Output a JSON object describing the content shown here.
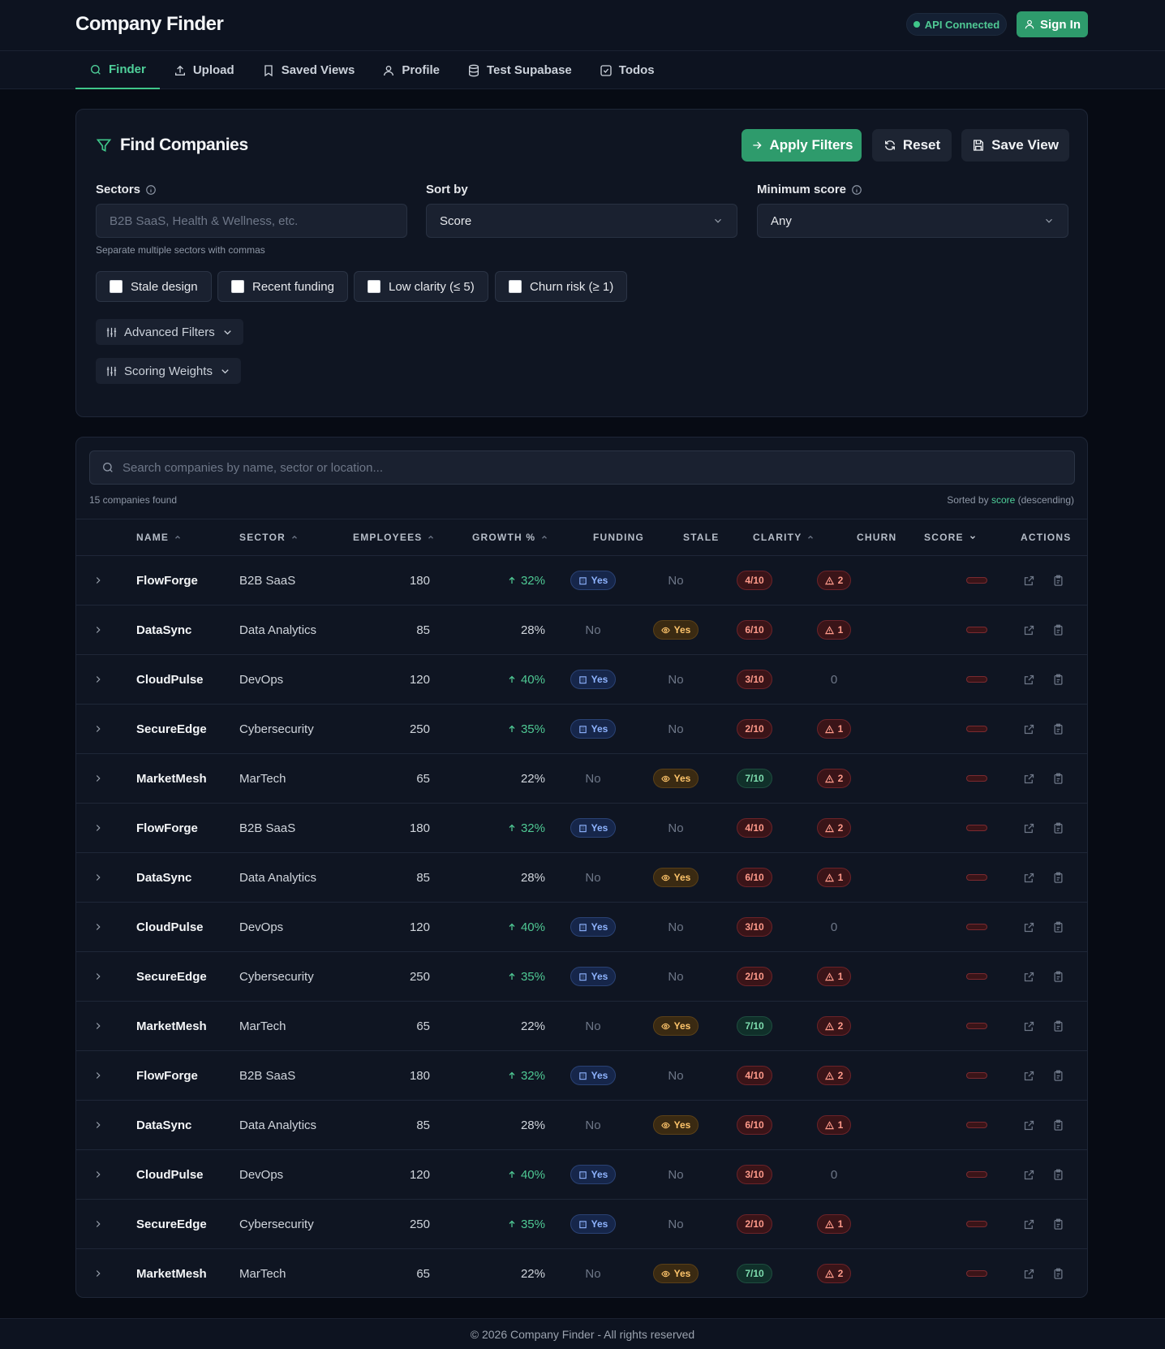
{
  "app": {
    "title": "Company Finder"
  },
  "header": {
    "api_status": "API Connected",
    "signin_label": "Sign In"
  },
  "nav": {
    "tabs": [
      {
        "label": "Finder",
        "icon": "search-icon"
      },
      {
        "label": "Upload",
        "icon": "upload-icon"
      },
      {
        "label": "Saved Views",
        "icon": "bookmark-icon"
      },
      {
        "label": "Profile",
        "icon": "user-icon"
      },
      {
        "label": "Test Supabase",
        "icon": "database-icon"
      },
      {
        "label": "Todos",
        "icon": "checkbox-icon"
      }
    ],
    "active": "Finder"
  },
  "filters": {
    "title": "Find Companies",
    "apply_label": "Apply Filters",
    "reset_label": "Reset",
    "save_label": "Save View",
    "sectors_label": "Sectors",
    "sectors_placeholder": "B2B SaaS, Health & Wellness, etc.",
    "sectors_hint": "Separate multiple sectors with commas",
    "sort_label": "Sort by",
    "sort_value": "Score",
    "min_score_label": "Minimum score",
    "min_score_value": "Any",
    "checkboxes": [
      "Stale design",
      "Recent funding",
      "Low clarity (≤ 5)",
      "Churn risk (≥ 1)"
    ],
    "advanced_label": "Advanced Filters",
    "weights_label": "Scoring Weights"
  },
  "results": {
    "search_placeholder": "Search companies by name, sector or location...",
    "count_text": "15 companies found",
    "sorted_prefix": "Sorted by",
    "sorted_key": "score",
    "sorted_suffix": "(descending)",
    "columns": [
      "NAME",
      "SECTOR",
      "EMPLOYEES",
      "GROWTH %",
      "FUNDING",
      "STALE",
      "CLARITY",
      "CHURN",
      "SCORE",
      "ACTIONS"
    ],
    "rows": [
      {
        "name": "FlowForge",
        "sector": "B2B SaaS",
        "employees": "180",
        "growth": "32%",
        "growth_up": true,
        "funding": "Yes",
        "stale": "No",
        "clarity": "4/10",
        "clarity_level": "red",
        "churn": "2"
      },
      {
        "name": "DataSync",
        "sector": "Data Analytics",
        "employees": "85",
        "growth": "28%",
        "growth_up": false,
        "funding": "No",
        "stale": "Yes",
        "clarity": "6/10",
        "clarity_level": "red",
        "churn": "1"
      },
      {
        "name": "CloudPulse",
        "sector": "DevOps",
        "employees": "120",
        "growth": "40%",
        "growth_up": true,
        "funding": "Yes",
        "stale": "No",
        "clarity": "3/10",
        "clarity_level": "red",
        "churn": "0"
      },
      {
        "name": "SecureEdge",
        "sector": "Cybersecurity",
        "employees": "250",
        "growth": "35%",
        "growth_up": true,
        "funding": "Yes",
        "stale": "No",
        "clarity": "2/10",
        "clarity_level": "red",
        "churn": "1"
      },
      {
        "name": "MarketMesh",
        "sector": "MarTech",
        "employees": "65",
        "growth": "22%",
        "growth_up": false,
        "funding": "No",
        "stale": "Yes",
        "clarity": "7/10",
        "clarity_level": "green",
        "churn": "2"
      },
      {
        "name": "FlowForge",
        "sector": "B2B SaaS",
        "employees": "180",
        "growth": "32%",
        "growth_up": true,
        "funding": "Yes",
        "stale": "No",
        "clarity": "4/10",
        "clarity_level": "red",
        "churn": "2"
      },
      {
        "name": "DataSync",
        "sector": "Data Analytics",
        "employees": "85",
        "growth": "28%",
        "growth_up": false,
        "funding": "No",
        "stale": "Yes",
        "clarity": "6/10",
        "clarity_level": "red",
        "churn": "1"
      },
      {
        "name": "CloudPulse",
        "sector": "DevOps",
        "employees": "120",
        "growth": "40%",
        "growth_up": true,
        "funding": "Yes",
        "stale": "No",
        "clarity": "3/10",
        "clarity_level": "red",
        "churn": "0"
      },
      {
        "name": "SecureEdge",
        "sector": "Cybersecurity",
        "employees": "250",
        "growth": "35%",
        "growth_up": true,
        "funding": "Yes",
        "stale": "No",
        "clarity": "2/10",
        "clarity_level": "red",
        "churn": "1"
      },
      {
        "name": "MarketMesh",
        "sector": "MarTech",
        "employees": "65",
        "growth": "22%",
        "growth_up": false,
        "funding": "No",
        "stale": "Yes",
        "clarity": "7/10",
        "clarity_level": "green",
        "churn": "2"
      },
      {
        "name": "FlowForge",
        "sector": "B2B SaaS",
        "employees": "180",
        "growth": "32%",
        "growth_up": true,
        "funding": "Yes",
        "stale": "No",
        "clarity": "4/10",
        "clarity_level": "red",
        "churn": "2"
      },
      {
        "name": "DataSync",
        "sector": "Data Analytics",
        "employees": "85",
        "growth": "28%",
        "growth_up": false,
        "funding": "No",
        "stale": "Yes",
        "clarity": "6/10",
        "clarity_level": "red",
        "churn": "1"
      },
      {
        "name": "CloudPulse",
        "sector": "DevOps",
        "employees": "120",
        "growth": "40%",
        "growth_up": true,
        "funding": "Yes",
        "stale": "No",
        "clarity": "3/10",
        "clarity_level": "red",
        "churn": "0"
      },
      {
        "name": "SecureEdge",
        "sector": "Cybersecurity",
        "employees": "250",
        "growth": "35%",
        "growth_up": true,
        "funding": "Yes",
        "stale": "No",
        "clarity": "2/10",
        "clarity_level": "red",
        "churn": "1"
      },
      {
        "name": "MarketMesh",
        "sector": "MarTech",
        "employees": "65",
        "growth": "22%",
        "growth_up": false,
        "funding": "No",
        "stale": "Yes",
        "clarity": "7/10",
        "clarity_level": "green",
        "churn": "2"
      }
    ]
  },
  "footer": {
    "text": "© 2026 Company Finder - All rights reserved"
  },
  "colors": {
    "accent": "#2e9b6c",
    "accent_text": "#4fd09a",
    "background": "#070b14",
    "card": "#0f1522"
  }
}
